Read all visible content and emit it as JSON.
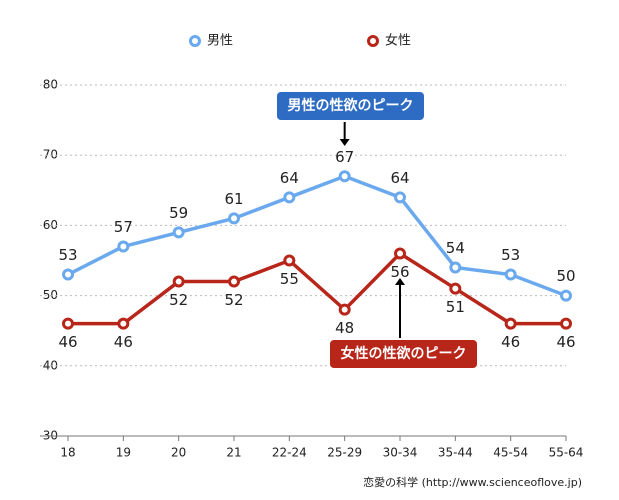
{
  "chart_data": {
    "type": "line",
    "categories": [
      "18",
      "19",
      "20",
      "21",
      "22-24",
      "25-29",
      "30-34",
      "35-44",
      "45-54",
      "55-64"
    ],
    "series": [
      {
        "name": "男性",
        "color": "#6aa9ee",
        "values": [
          53,
          57,
          59,
          61,
          64,
          67,
          64,
          54,
          53,
          50
        ]
      },
      {
        "name": "女性",
        "color": "#b8261a",
        "values": [
          46,
          46,
          52,
          52,
          55,
          48,
          56,
          51,
          46,
          46
        ]
      }
    ],
    "ylim": [
      30,
      80
    ],
    "yticks": [
      30,
      40,
      50,
      60,
      70,
      80
    ],
    "grid": true,
    "annotations": [
      {
        "text": "男性の性欲のピーク",
        "color": "#2e6cc4"
      },
      {
        "text": "女性の性欲のピーク",
        "color": "#b8261a"
      }
    ],
    "source": "恋愛の科学 (http://www.scienceoflove.jp)"
  }
}
